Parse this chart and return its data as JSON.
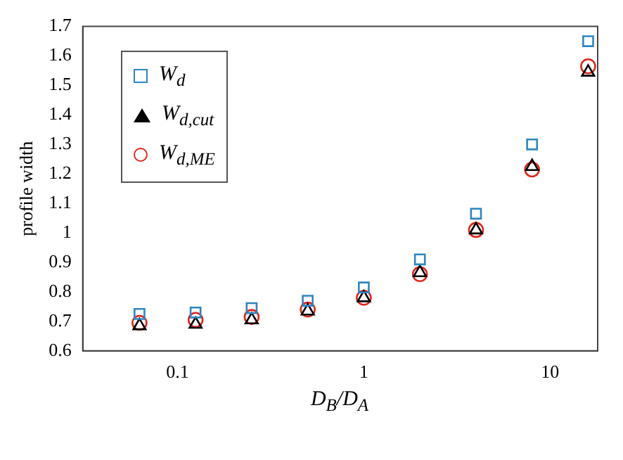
{
  "chart_data": {
    "type": "scatter",
    "xlabel": "D$_{B}$/D$_{A}$",
    "ylabel": "profile width",
    "log": "x",
    "grid": false,
    "legend": "top left",
    "x": [
      0.0625,
      0.125,
      0.25,
      0.5,
      1,
      2,
      4,
      8,
      16
    ],
    "xlim": [
      0.031,
      18
    ],
    "xticks": [
      0.1,
      1,
      10
    ],
    "ylim": [
      0.6,
      1.7
    ],
    "yticks": [
      0.6,
      0.7,
      0.8,
      0.9,
      1,
      1.1,
      1.2,
      1.3,
      1.4,
      1.5,
      1.6,
      1.7
    ],
    "series": [
      {
        "name": "W$_{d}$",
        "color": "#2e86c1",
        "marker": "square",
        "values": [
          0.725,
          0.73,
          0.745,
          0.77,
          0.815,
          0.91,
          1.065,
          1.3,
          1.65
        ]
      },
      {
        "name": "W$_{d,cut}$",
        "color": "#000000",
        "marker": "triangle",
        "values": [
          0.685,
          0.69,
          0.705,
          0.735,
          0.78,
          0.865,
          1.01,
          1.225,
          1.545
        ]
      },
      {
        "name": "W$_{d,ME}$",
        "color": "#e0271c",
        "marker": "circle",
        "values": [
          0.695,
          0.705,
          0.715,
          0.74,
          0.78,
          0.86,
          1.01,
          1.215,
          1.565
        ]
      }
    ]
  }
}
